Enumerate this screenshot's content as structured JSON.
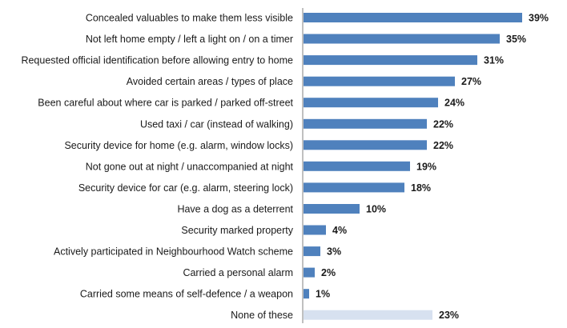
{
  "chart_data": {
    "type": "bar",
    "orientation": "horizontal",
    "title": "",
    "xlabel": "",
    "ylabel": "",
    "grid": false,
    "legend": "none",
    "xlim": [
      0,
      40
    ],
    "value_suffix": "%",
    "categories": [
      "Concealed valuables to make them less visible",
      "Not left home empty / left a light on / on a timer",
      "Requested official identification before allowing entry to home",
      "Avoided certain areas / types of place",
      "Been careful about where car is parked / parked off-street",
      "Used taxi / car (instead of walking)",
      "Security device for home (e.g. alarm, window locks)",
      "Not gone out at night / unaccompanied at night",
      "Security device for car (e.g. alarm, steering lock)",
      "Have a dog as a deterrent",
      "Security marked property",
      "Actively participated in Neighbourhood Watch scheme",
      "Carried a personal alarm",
      "Carried some means of self-defence / a weapon",
      "None of these"
    ],
    "values": [
      39,
      35,
      31,
      27,
      24,
      22,
      22,
      19,
      18,
      10,
      4,
      3,
      2,
      1,
      23
    ],
    "data_labels": [
      "39%",
      "35%",
      "31%",
      "27%",
      "24%",
      "22%",
      "22%",
      "19%",
      "18%",
      "10%",
      "4%",
      "3%",
      "2%",
      "1%",
      "23%"
    ],
    "colors": {
      "bar": "#4f81bd",
      "highlight_bar": "#d7e1f0",
      "axis": "#808080"
    },
    "highlight_index": 14
  }
}
